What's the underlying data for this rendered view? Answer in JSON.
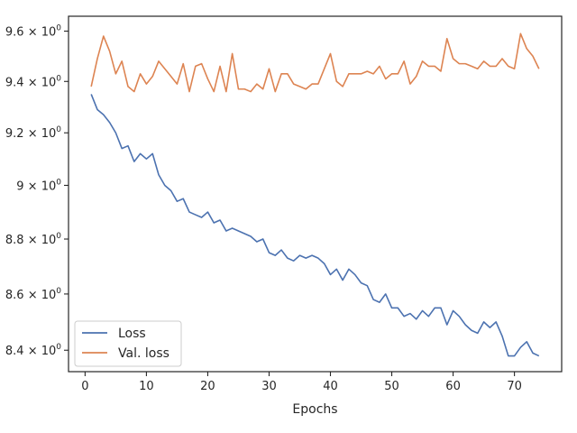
{
  "chart_data": {
    "type": "line",
    "title": "",
    "xlabel": "Epochs",
    "ylabel": "",
    "yscale": "log",
    "xlim": [
      -2.7,
      77.7
    ],
    "ylim": [
      8.325,
      9.66
    ],
    "grid": false,
    "legend_position": "lower-left",
    "x_ticks": [
      {
        "value": 0,
        "label": "0"
      },
      {
        "value": 10,
        "label": "10"
      },
      {
        "value": 20,
        "label": "20"
      },
      {
        "value": 30,
        "label": "30"
      },
      {
        "value": 40,
        "label": "40"
      },
      {
        "value": 50,
        "label": "50"
      },
      {
        "value": 60,
        "label": "60"
      },
      {
        "value": 70,
        "label": "70"
      }
    ],
    "y_ticks": [
      {
        "value": 8.4,
        "base": "8.4",
        "exp": "0"
      },
      {
        "value": 8.6,
        "base": "8.6",
        "exp": "0"
      },
      {
        "value": 8.8,
        "base": "8.8",
        "exp": "0"
      },
      {
        "value": 9.0,
        "base": "9",
        "exp": "0"
      },
      {
        "value": 9.2,
        "base": "9.2",
        "exp": "0"
      },
      {
        "value": 9.4,
        "base": "9.4",
        "exp": "0"
      },
      {
        "value": 9.6,
        "base": "9.6",
        "exp": "0"
      }
    ],
    "x": [
      1,
      2,
      3,
      4,
      5,
      6,
      7,
      8,
      9,
      10,
      11,
      12,
      13,
      14,
      15,
      16,
      17,
      18,
      19,
      20,
      21,
      22,
      23,
      24,
      25,
      26,
      27,
      28,
      29,
      30,
      31,
      32,
      33,
      34,
      35,
      36,
      37,
      38,
      39,
      40,
      41,
      42,
      43,
      44,
      45,
      46,
      47,
      48,
      49,
      50,
      51,
      52,
      53,
      54,
      55,
      56,
      57,
      58,
      59,
      60,
      61,
      62,
      63,
      64,
      65,
      66,
      67,
      68,
      69,
      70,
      71,
      72,
      73,
      74
    ],
    "series": [
      {
        "name": "Loss",
        "color": "#4c72b0",
        "values": [
          9.35,
          9.29,
          9.27,
          9.24,
          9.2,
          9.14,
          9.15,
          9.09,
          9.12,
          9.1,
          9.12,
          9.04,
          9.0,
          8.98,
          8.94,
          8.95,
          8.9,
          8.89,
          8.88,
          8.9,
          8.86,
          8.87,
          8.83,
          8.84,
          8.83,
          8.82,
          8.81,
          8.79,
          8.8,
          8.75,
          8.74,
          8.76,
          8.73,
          8.72,
          8.74,
          8.73,
          8.74,
          8.73,
          8.71,
          8.67,
          8.69,
          8.65,
          8.69,
          8.67,
          8.64,
          8.63,
          8.58,
          8.57,
          8.6,
          8.55,
          8.55,
          8.52,
          8.53,
          8.51,
          8.54,
          8.52,
          8.55,
          8.55,
          8.49,
          8.54,
          8.52,
          8.49,
          8.47,
          8.46,
          8.5,
          8.48,
          8.5,
          8.45,
          8.38,
          8.38,
          8.41,
          8.43,
          8.39,
          8.38
        ]
      },
      {
        "name": "Val. loss",
        "color": "#dd8452",
        "values": [
          9.38,
          9.49,
          9.58,
          9.52,
          9.43,
          9.48,
          9.38,
          9.36,
          9.43,
          9.39,
          9.42,
          9.48,
          9.45,
          9.42,
          9.39,
          9.47,
          9.36,
          9.46,
          9.47,
          9.41,
          9.36,
          9.46,
          9.36,
          9.51,
          9.37,
          9.37,
          9.36,
          9.39,
          9.37,
          9.45,
          9.36,
          9.43,
          9.43,
          9.39,
          9.38,
          9.37,
          9.39,
          9.39,
          9.45,
          9.51,
          9.4,
          9.38,
          9.43,
          9.43,
          9.43,
          9.44,
          9.43,
          9.46,
          9.41,
          9.43,
          9.43,
          9.48,
          9.39,
          9.42,
          9.48,
          9.46,
          9.46,
          9.44,
          9.57,
          9.49,
          9.47,
          9.47,
          9.46,
          9.45,
          9.48,
          9.46,
          9.46,
          9.49,
          9.46,
          9.45,
          9.59,
          9.53,
          9.5,
          9.45
        ]
      }
    ]
  }
}
